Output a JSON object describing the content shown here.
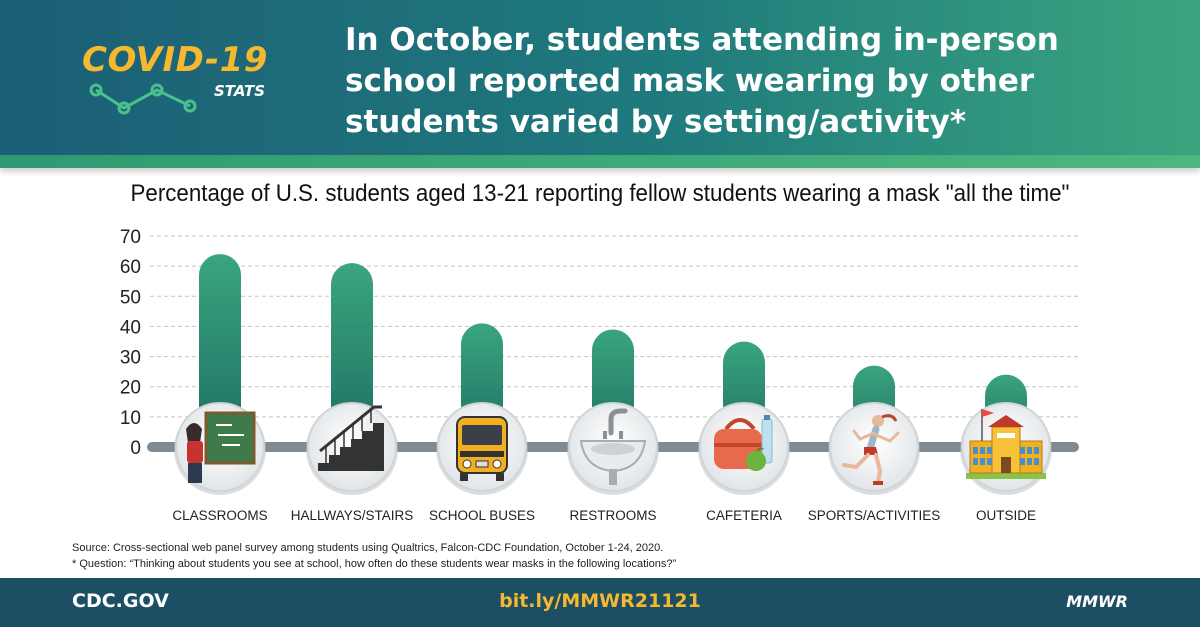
{
  "header": {
    "logo_main": "COVID-19",
    "logo_sub": "STATS",
    "headline": "In October, students attending in-person school reported mask wearing by other students varied by setting/activity*"
  },
  "colors": {
    "header_start": "#1c5e76",
    "header_end": "#3aa57e",
    "bar_top": "#3aa57e",
    "bar_bottom": "#1e6f62",
    "accent_yellow": "#f5b82e",
    "footer": "#1d4f64",
    "baseline": "#7f8a92"
  },
  "chart_data": {
    "type": "bar",
    "title": "Percentage of U.S. students aged 13-21 reporting fellow students wearing a mask \"all the time\"",
    "categories": [
      "CLASSROOMS",
      "HALLWAYS/STAIRS",
      "SCHOOL BUSES",
      "RESTROOMS",
      "CAFETERIA",
      "SPORTS/ACTIVITIES",
      "OUTSIDE"
    ],
    "values": [
      64,
      61,
      41,
      39,
      35,
      27,
      24
    ],
    "icons": [
      "teacher-chalkboard-icon",
      "stairs-icon",
      "school-bus-icon",
      "sink-icon",
      "lunchbox-icon",
      "runner-icon",
      "school-building-icon"
    ],
    "yticks": [
      0,
      10,
      20,
      30,
      40,
      50,
      60,
      70
    ],
    "ylim": [
      0,
      70
    ],
    "grid": true
  },
  "source": {
    "line1": "Source: Cross-sectional web panel survey among students using Qualtrics, Falcon-CDC Foundation, October 1-24, 2020.",
    "line2": "* Question: “Thinking about students you see at school, how often do these students wear masks in the following locations?”"
  },
  "footer": {
    "left": "CDC.GOV",
    "middle": "bit.ly/MMWR21121",
    "right": "MMWR"
  }
}
